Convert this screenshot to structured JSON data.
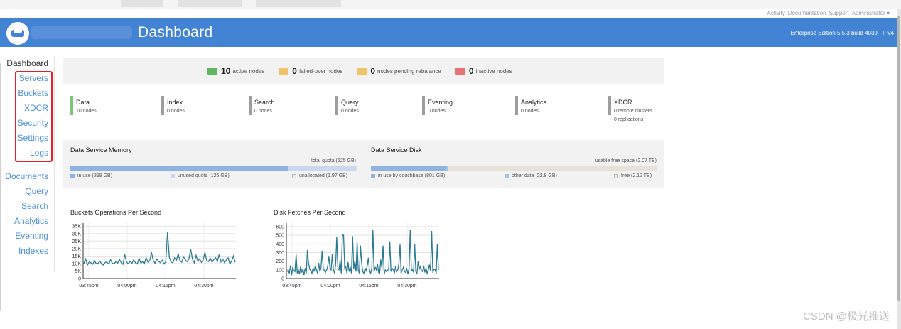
{
  "top_links": [
    "Activity",
    "Documentation",
    "Support",
    "Administrator ▾"
  ],
  "header": {
    "title": "Dashboard",
    "edition": "Enterprise Edition 5.5.3 build 4039 · IPv4"
  },
  "nav": {
    "items": [
      {
        "label": "Dashboard",
        "active": true
      },
      {
        "label": "Servers"
      },
      {
        "label": "Buckets"
      },
      {
        "label": "XDCR"
      },
      {
        "label": "Security"
      },
      {
        "label": "Settings"
      },
      {
        "label": "Logs"
      },
      {
        "label": "Documents"
      },
      {
        "label": "Query"
      },
      {
        "label": "Search"
      },
      {
        "label": "Analytics"
      },
      {
        "label": "Eventing"
      },
      {
        "label": "Indexes"
      }
    ]
  },
  "status": [
    {
      "count": "10",
      "label": "active nodes",
      "color": "#5fb85f"
    },
    {
      "count": "0",
      "label": "failed-over nodes",
      "color": "#f0c36b"
    },
    {
      "count": "0",
      "label": "nodes pending rebalance",
      "color": "#f0c36b"
    },
    {
      "count": "0",
      "label": "inactive nodes",
      "color": "#e57373"
    }
  ],
  "services": [
    {
      "name": "Data",
      "sub": [
        "10 nodes"
      ],
      "color": "#7cc576"
    },
    {
      "name": "Index",
      "sub": [
        "0 nodes"
      ],
      "color": "#9e9e9e"
    },
    {
      "name": "Search",
      "sub": [
        "0 nodes"
      ],
      "color": "#9e9e9e"
    },
    {
      "name": "Query",
      "sub": [
        "0 nodes"
      ],
      "color": "#9e9e9e"
    },
    {
      "name": "Eventing",
      "sub": [
        "0 nodes"
      ],
      "color": "#9e9e9e"
    },
    {
      "name": "Analytics",
      "sub": [
        "0 nodes"
      ],
      "color": "#9e9e9e"
    },
    {
      "name": "XDCR",
      "sub": [
        "0 remote clusters",
        "0 replications"
      ],
      "color": "#9e9e9e"
    }
  ],
  "memory": {
    "title": "Data Service Memory",
    "total": "total quota (525 GB)",
    "fractions": [
      0.76,
      0.24,
      0.004
    ],
    "colors": [
      "#8fb4e3",
      "#c8d8ee",
      "#e8e2d6"
    ],
    "legend": [
      "in use (399 GB)",
      "unused quota (126 GB)",
      "unallocated (1.97 GB)"
    ]
  },
  "disk": {
    "title": "Data Service Disk",
    "total": "usable free space (2.07 TB)",
    "fractions": [
      0.26,
      0.01,
      0.73
    ],
    "colors": [
      "#8fb4e3",
      "#a9c3e8",
      "#e8e2d6"
    ],
    "legend": [
      "in use by couchbase (801 GB)",
      "other data (22.8 GB)",
      "free (2.12 TB)"
    ]
  },
  "chart_data": [
    {
      "type": "line",
      "title": "Buckets Operations Per Second",
      "ylim": [
        0,
        37000
      ],
      "yticks": [
        "0",
        "5K",
        "10K",
        "15K",
        "20K",
        "25K",
        "30K",
        "35K"
      ],
      "ytick_values": [
        0,
        5000,
        10000,
        15000,
        20000,
        25000,
        30000,
        35000
      ],
      "xticks": [
        "03:45pm",
        "04:00pm",
        "04:15pm",
        "04:30pm"
      ],
      "color": "#2a7a94",
      "values": [
        10000,
        13000,
        9000,
        11000,
        10500,
        9500,
        12000,
        9800,
        10200,
        11500,
        9700,
        9000,
        10800,
        11000,
        9600,
        12500,
        10100,
        9900,
        11200,
        10300,
        12800,
        10600,
        9500,
        16000,
        11000,
        9800,
        11500,
        10200,
        12500,
        10500,
        9700,
        13500,
        10400,
        11200,
        9800,
        14000,
        10900,
        11800,
        17500,
        12000,
        10200,
        13000,
        11500,
        10600,
        12200,
        9700,
        11400,
        31000,
        14000,
        11000,
        10500,
        13800,
        12200,
        16500,
        11800,
        10900,
        14500,
        12500,
        11200,
        13000,
        19500,
        12800,
        10500,
        15500,
        11600,
        13200,
        10800,
        12400,
        17500,
        12000,
        11300,
        13600,
        10900,
        12600,
        14000,
        11400,
        16000,
        11100,
        12900,
        10600,
        12300,
        13800,
        9800,
        11700,
        15000,
        10800
      ]
    },
    {
      "type": "line",
      "title": "Disk Fetches Per Second",
      "ylim": [
        0,
        640
      ],
      "yticks": [
        "0",
        "100",
        "200",
        "300",
        "400",
        "500",
        "600"
      ],
      "ytick_values": [
        0,
        100,
        200,
        300,
        400,
        500,
        600
      ],
      "xticks": [
        "03:45pm",
        "04:00pm",
        "04:15pm",
        "04:30pm"
      ],
      "color": "#2a7a94",
      "values": [
        80,
        100,
        60,
        150,
        40,
        120,
        90,
        80,
        280,
        60,
        100,
        50,
        140,
        70,
        110,
        40,
        120,
        60,
        330,
        180,
        110,
        90,
        60,
        120,
        80,
        150,
        100,
        60,
        180,
        80,
        120,
        320,
        120,
        90,
        70,
        100,
        140,
        260,
        120,
        100,
        280,
        100,
        60,
        170,
        480,
        110,
        100,
        210,
        60,
        510,
        500,
        120,
        140,
        60,
        190,
        80,
        130,
        60,
        490,
        110,
        200,
        80,
        420,
        100,
        60,
        380,
        180,
        80,
        60,
        120,
        90,
        150,
        240,
        90,
        60,
        110,
        560,
        80,
        130,
        100,
        170,
        70,
        60,
        220,
        120,
        380,
        50,
        100,
        80,
        90,
        120,
        430,
        80,
        120,
        100,
        60,
        140,
        80,
        100,
        170,
        400,
        60,
        100,
        130,
        80,
        70,
        110,
        50,
        120,
        560,
        90,
        100,
        70,
        400,
        80,
        60,
        200,
        110,
        140,
        90,
        80,
        150,
        70,
        120,
        60,
        100,
        160,
        90,
        550,
        80,
        100,
        110,
        60,
        400,
        100
      ]
    }
  ],
  "watermark": "CSDN @极光推送"
}
